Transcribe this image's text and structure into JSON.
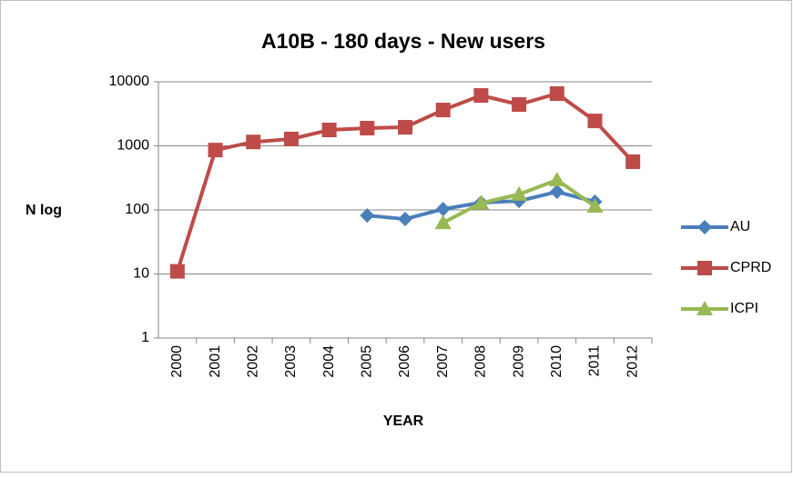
{
  "chart_data": {
    "type": "line",
    "title": "A10B - 180 days - New users",
    "x_label": "YEAR",
    "y_label": "N log",
    "categories": [
      "2000",
      "2001",
      "2002",
      "2003",
      "2004",
      "2005",
      "2006",
      "2007",
      "2008",
      "2009",
      "2010",
      "2011",
      "2012"
    ],
    "series": [
      {
        "name": "AU",
        "color": "#4a7ebb",
        "marker": "diamond",
        "values": [
          null,
          null,
          null,
          null,
          null,
          82,
          72,
          103,
          130,
          138,
          192,
          134,
          null
        ]
      },
      {
        "name": "CPRD",
        "color": "#be4b48",
        "marker": "square",
        "values": [
          11,
          860,
          1150,
          1280,
          1770,
          1890,
          1950,
          3630,
          6120,
          4420,
          6540,
          2450,
          565
        ]
      },
      {
        "name": "ICPI",
        "color": "#98b954",
        "marker": "triangle",
        "values": [
          null,
          null,
          null,
          null,
          null,
          null,
          null,
          63,
          128,
          175,
          294,
          114,
          null
        ]
      }
    ],
    "log_scale": true,
    "ylim": [
      1,
      10000
    ],
    "yticks": [
      1,
      10,
      100,
      1000,
      10000
    ],
    "grid": true,
    "legend": "right"
  }
}
